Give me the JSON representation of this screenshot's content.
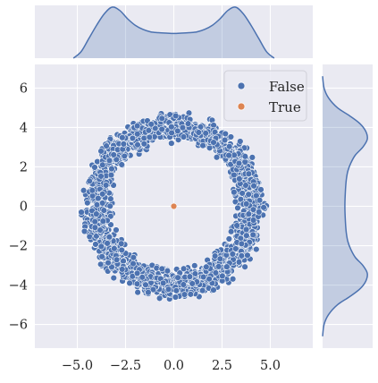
{
  "chart_data": {
    "type": "scatter",
    "style": "seaborn-darkgrid jointplot",
    "title": "",
    "xlabel": "",
    "ylabel": "",
    "xlim": [
      -7.2,
      7.2
    ],
    "ylim": [
      -7.2,
      7.2
    ],
    "x_ticks": [
      -5.0,
      -2.5,
      0.0,
      2.5,
      5.0
    ],
    "x_tick_labels": [
      "−5.0",
      "−2.5",
      "0.0",
      "2.5",
      "5.0"
    ],
    "y_ticks": [
      -6,
      -4,
      -2,
      0,
      2,
      4,
      6
    ],
    "y_tick_labels": [
      "−6",
      "−4",
      "−2",
      "0",
      "2",
      "4",
      "6"
    ],
    "grid": true,
    "legend": {
      "placement": "top-right",
      "entries": [
        {
          "label": "False",
          "color": "#4c72b0"
        },
        {
          "label": "True",
          "color": "#dd8452"
        }
      ]
    },
    "series": [
      {
        "name": "False",
        "color": "#4c72b0",
        "shape": "ring",
        "center": [
          0,
          0
        ],
        "radius_mean": 4.0,
        "radius_spread": [
          3.2,
          4.8
        ],
        "point_count_approx": 2000
      },
      {
        "name": "True",
        "color": "#dd8452",
        "points": [
          {
            "x": 0.0,
            "y": 0.0
          }
        ]
      }
    ],
    "marginal_x": {
      "type": "kde",
      "fill": "#4c72b0",
      "x": [
        -5.2,
        -4.8,
        -4.4,
        -4.0,
        -3.6,
        -3.2,
        -2.8,
        -2.4,
        -2.0,
        -1.6,
        -1.2,
        -0.8,
        -0.4,
        0.0,
        0.4,
        0.8,
        1.2,
        1.6,
        2.0,
        2.4,
        2.8,
        3.2,
        3.6,
        4.0,
        4.4,
        4.8,
        5.2
      ],
      "density": [
        0.0,
        0.04,
        0.12,
        0.2,
        0.27,
        0.31,
        0.29,
        0.24,
        0.2,
        0.175,
        0.16,
        0.155,
        0.152,
        0.15,
        0.152,
        0.155,
        0.16,
        0.175,
        0.2,
        0.24,
        0.29,
        0.31,
        0.27,
        0.2,
        0.12,
        0.04,
        0.0
      ]
    },
    "marginal_y": {
      "type": "kde",
      "fill": "#4c72b0",
      "y": [
        -6.6,
        -6.0,
        -5.5,
        -5.0,
        -4.6,
        -4.2,
        -3.8,
        -3.4,
        -3.0,
        -2.6,
        -2.2,
        -1.8,
        -1.4,
        -1.0,
        -0.6,
        -0.2,
        0.2,
        0.6,
        1.0,
        1.4,
        1.8,
        2.2,
        2.6,
        3.0,
        3.4,
        3.8,
        4.2,
        4.6,
        5.0,
        5.5,
        6.0,
        6.6
      ],
      "density": [
        0.0,
        0.01,
        0.04,
        0.1,
        0.18,
        0.25,
        0.29,
        0.3,
        0.27,
        0.22,
        0.19,
        0.17,
        0.16,
        0.155,
        0.152,
        0.15,
        0.15,
        0.152,
        0.155,
        0.16,
        0.17,
        0.19,
        0.22,
        0.27,
        0.3,
        0.29,
        0.25,
        0.18,
        0.1,
        0.04,
        0.01,
        0.0
      ]
    }
  }
}
